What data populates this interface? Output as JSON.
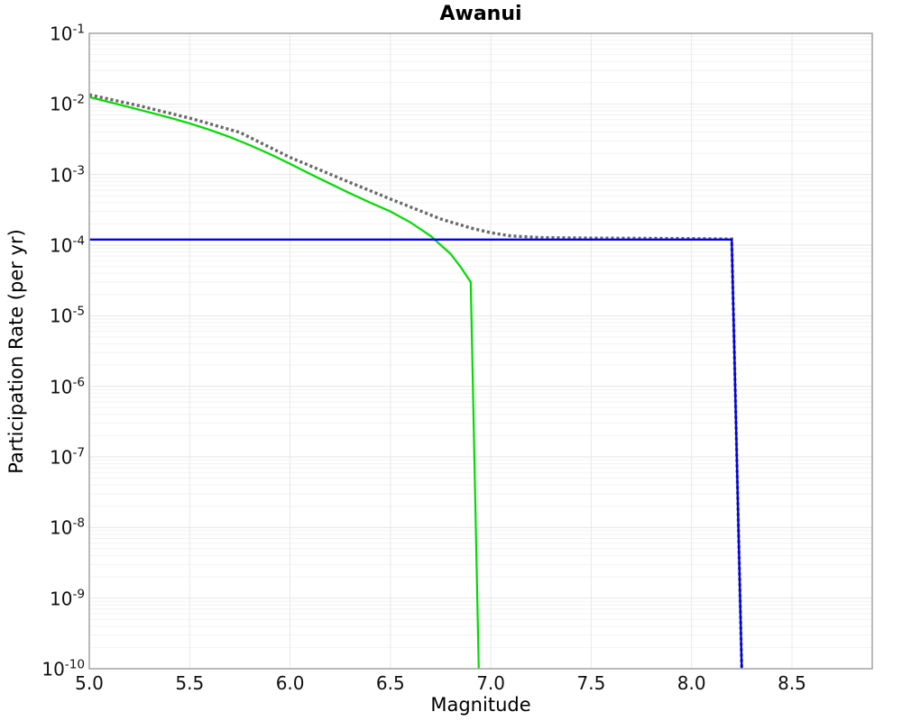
{
  "chart_data": {
    "type": "line",
    "title": "Awanui",
    "xlabel": "Magnitude",
    "ylabel": "Participation Rate (per yr)",
    "x_scale": "linear",
    "y_scale": "log",
    "x_range": [
      5.0,
      8.9
    ],
    "y_exponent_range": [
      -1,
      -10
    ],
    "x_ticks": [
      5.0,
      5.5,
      6.0,
      6.5,
      7.0,
      7.5,
      8.0,
      8.5
    ],
    "y_tick_exponents": [
      -1,
      -2,
      -3,
      -4,
      -5,
      -6,
      -7,
      -8,
      -9,
      -10
    ],
    "grid": {
      "show": true,
      "minor_color": "#f2f2f2",
      "major_color": "#e6e6e6",
      "vertical_color": "#e9e9e9",
      "frame_color": "#a8a8a8"
    },
    "legend": {
      "visible": false
    },
    "series": [
      {
        "name": "gray-dotted-curve",
        "style": "dotted",
        "color": "#6a6a6a",
        "width": 3.4,
        "points": [
          [
            5.0,
            0.0135
          ],
          [
            5.25,
            0.0094
          ],
          [
            5.5,
            0.0063
          ],
          [
            5.75,
            0.00395
          ],
          [
            6.0,
            0.00175
          ],
          [
            6.25,
            0.00088
          ],
          [
            6.5,
            0.00045
          ],
          [
            6.75,
            0.000235
          ],
          [
            6.9,
            0.000175
          ],
          [
            7.0,
            0.00015
          ],
          [
            7.1,
            0.000135
          ],
          [
            7.25,
            0.000128
          ],
          [
            7.5,
            0.000126
          ],
          [
            7.75,
            0.000125
          ],
          [
            8.0,
            0.000124
          ],
          [
            8.2,
            0.000122
          ],
          [
            8.25,
            1e-10
          ]
        ]
      },
      {
        "name": "green-curve",
        "style": "solid",
        "color": "#00dc00",
        "width": 2.2,
        "points": [
          [
            5.0,
            0.0125
          ],
          [
            5.1,
            0.0106
          ],
          [
            5.2,
            0.009
          ],
          [
            5.3,
            0.0076
          ],
          [
            5.4,
            0.0064
          ],
          [
            5.5,
            0.0053
          ],
          [
            5.6,
            0.0043
          ],
          [
            5.7,
            0.0034
          ],
          [
            5.8,
            0.0026
          ],
          [
            5.9,
            0.00195
          ],
          [
            6.0,
            0.00142
          ],
          [
            6.1,
            0.00102
          ],
          [
            6.2,
            0.00074
          ],
          [
            6.3,
            0.00054
          ],
          [
            6.4,
            0.0004
          ],
          [
            6.5,
            0.0003
          ],
          [
            6.6,
            0.00021
          ],
          [
            6.7,
            0.000135
          ],
          [
            6.8,
            7.5e-05
          ],
          [
            6.85,
            4.9e-05
          ],
          [
            6.9,
            3e-05
          ],
          [
            6.94,
            1e-10
          ]
        ]
      },
      {
        "name": "blue-line",
        "style": "solid",
        "color": "#0000ee",
        "width": 2.4,
        "points": [
          [
            5.0,
            0.00012
          ],
          [
            8.2,
            0.00012
          ],
          [
            8.25,
            1e-10
          ]
        ]
      }
    ]
  }
}
